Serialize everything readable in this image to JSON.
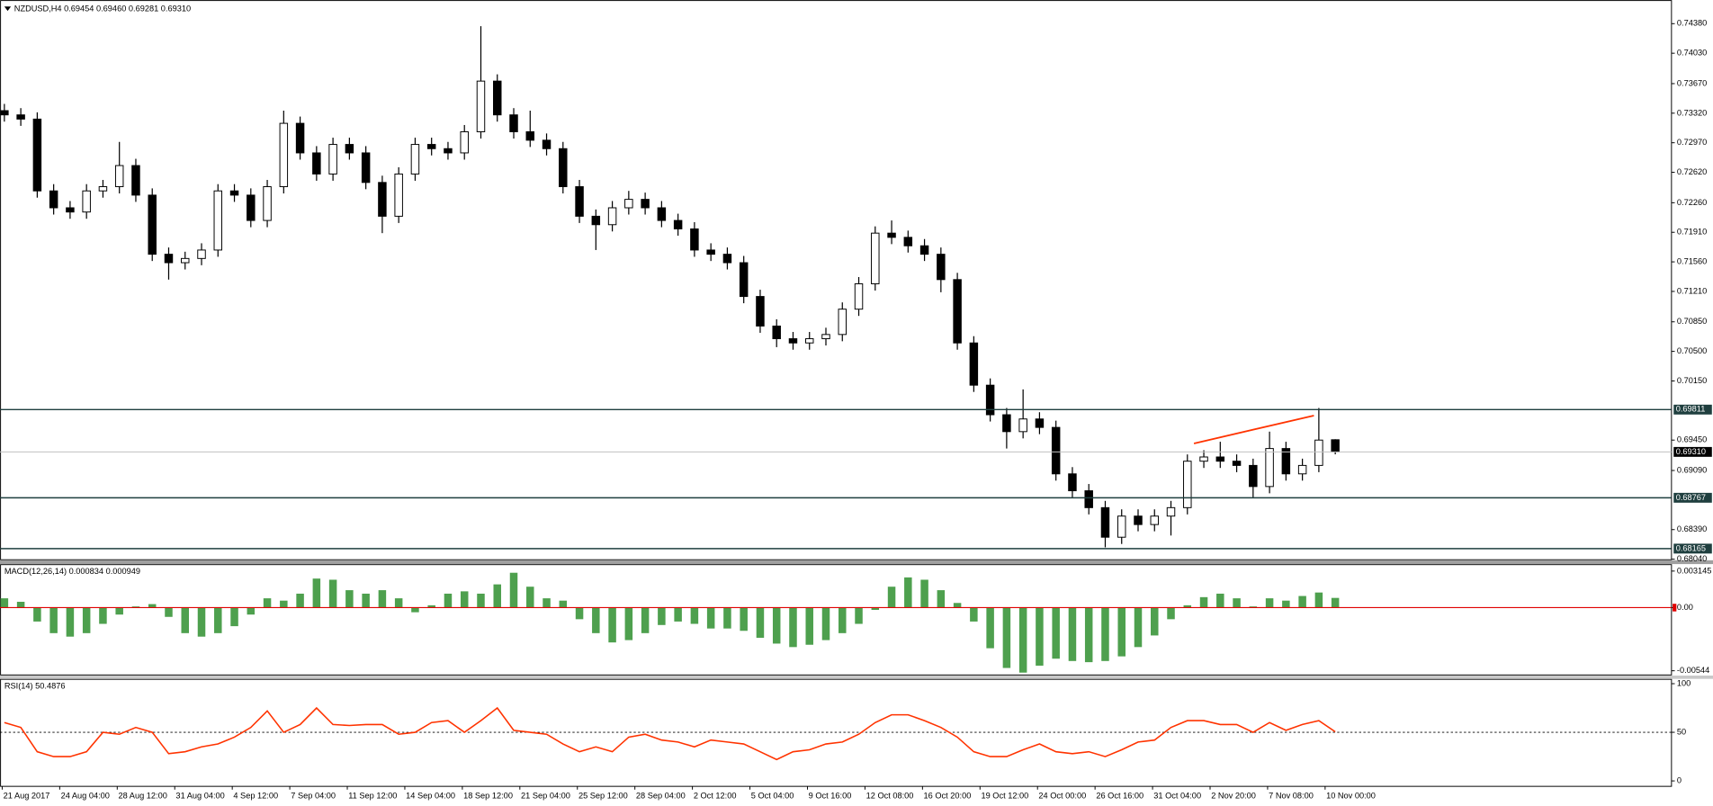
{
  "chart_data": [
    {
      "type": "candlestick",
      "title": "NZDUSD,H4  0.69454 0.69460 0.69281 0.69310",
      "ylim": [
        0.6804,
        0.7466
      ],
      "yticks": [
        {
          "value": 0.7438,
          "label": "0.74380"
        },
        {
          "value": 0.7403,
          "label": "0.74030"
        },
        {
          "value": 0.7367,
          "label": "0.73670"
        },
        {
          "value": 0.7332,
          "label": "0.73320"
        },
        {
          "value": 0.7297,
          "label": "0.72970"
        },
        {
          "value": 0.7262,
          "label": "0.72620"
        },
        {
          "value": 0.7226,
          "label": "0.72260"
        },
        {
          "value": 0.7191,
          "label": "0.71910"
        },
        {
          "value": 0.7156,
          "label": "0.71560"
        },
        {
          "value": 0.7121,
          "label": "0.71210"
        },
        {
          "value": 0.7085,
          "label": "0.70850"
        },
        {
          "value": 0.705,
          "label": "0.70500"
        },
        {
          "value": 0.7015,
          "label": "0.70150"
        },
        {
          "value": 0.6945,
          "label": "0.69450"
        },
        {
          "value": 0.6909,
          "label": "0.69090"
        },
        {
          "value": 0.6839,
          "label": "0.68390"
        },
        {
          "value": 0.6804,
          "label": "0.68040"
        }
      ],
      "levels": [
        0.69811,
        0.68767,
        0.68165
      ],
      "level_color": "#1f3f3f",
      "current_price": {
        "value": 0.6931,
        "label": "0.69310"
      },
      "trendline": {
        "x": [
          72.4,
          79.7
        ],
        "y": [
          0.6941,
          0.6974
        ],
        "color": "#ff3300"
      },
      "open": [
        0.7335,
        0.733,
        0.7325,
        0.724,
        0.722,
        0.7215,
        0.724,
        0.7245,
        0.727,
        0.7235,
        0.7165,
        0.7155,
        0.716,
        0.717,
        0.724,
        0.7235,
        0.7205,
        0.7245,
        0.732,
        0.7285,
        0.726,
        0.7295,
        0.7285,
        0.725,
        0.721,
        0.726,
        0.7295,
        0.729,
        0.7285,
        0.731,
        0.737,
        0.733,
        0.731,
        0.73,
        0.729,
        0.7245,
        0.721,
        0.72,
        0.722,
        0.723,
        0.722,
        0.7205,
        0.7195,
        0.717,
        0.7165,
        0.7155,
        0.7115,
        0.708,
        0.7065,
        0.706,
        0.7065,
        0.707,
        0.71,
        0.713,
        0.719,
        0.7185,
        0.7175,
        0.7165,
        0.7135,
        0.706,
        0.701,
        0.6975,
        0.6955,
        0.697,
        0.696,
        0.6905,
        0.6885,
        0.6865,
        0.683,
        0.6855,
        0.6845,
        0.6855,
        0.6865,
        0.692,
        0.6925,
        0.692,
        0.6915,
        0.689,
        0.6935,
        0.6905,
        0.6915,
        0.69454
      ],
      "high": [
        0.7343,
        0.7338,
        0.7333,
        0.7248,
        0.7228,
        0.7248,
        0.7253,
        0.7298,
        0.7278,
        0.7243,
        0.7173,
        0.7168,
        0.7178,
        0.7248,
        0.7248,
        0.7243,
        0.7253,
        0.7335,
        0.7328,
        0.7293,
        0.7303,
        0.7303,
        0.7293,
        0.7258,
        0.7268,
        0.7303,
        0.7303,
        0.7298,
        0.7318,
        0.7435,
        0.7378,
        0.7338,
        0.7335,
        0.7308,
        0.7298,
        0.7253,
        0.7218,
        0.7228,
        0.724,
        0.7238,
        0.7228,
        0.7213,
        0.7203,
        0.7178,
        0.7173,
        0.7163,
        0.7123,
        0.7088,
        0.7073,
        0.7073,
        0.7078,
        0.7108,
        0.7138,
        0.7198,
        0.7205,
        0.7193,
        0.7183,
        0.7173,
        0.7143,
        0.7068,
        0.7018,
        0.6983,
        0.7005,
        0.6978,
        0.6968,
        0.6913,
        0.6893,
        0.6873,
        0.6863,
        0.6863,
        0.6863,
        0.6873,
        0.6928,
        0.6933,
        0.6943,
        0.6928,
        0.6923,
        0.6955,
        0.6943,
        0.6923,
        0.6983,
        0.6946
      ],
      "low": [
        0.7322,
        0.7317,
        0.7232,
        0.7212,
        0.7207,
        0.7207,
        0.7232,
        0.7237,
        0.7227,
        0.7157,
        0.7135,
        0.7147,
        0.7152,
        0.7162,
        0.7227,
        0.7197,
        0.7197,
        0.7237,
        0.7277,
        0.7252,
        0.7252,
        0.7277,
        0.7242,
        0.719,
        0.7202,
        0.7252,
        0.7282,
        0.7277,
        0.7277,
        0.7302,
        0.7322,
        0.7302,
        0.7292,
        0.7282,
        0.7237,
        0.7202,
        0.717,
        0.7192,
        0.7212,
        0.7212,
        0.7197,
        0.7187,
        0.7162,
        0.7157,
        0.7147,
        0.7107,
        0.7072,
        0.7055,
        0.7052,
        0.7052,
        0.7057,
        0.7062,
        0.7092,
        0.7122,
        0.7177,
        0.7167,
        0.7157,
        0.712,
        0.7052,
        0.7002,
        0.6967,
        0.6935,
        0.6947,
        0.6952,
        0.6897,
        0.6877,
        0.6857,
        0.6818,
        0.6822,
        0.6837,
        0.6837,
        0.6832,
        0.6857,
        0.6912,
        0.6912,
        0.6907,
        0.6877,
        0.6882,
        0.6897,
        0.6897,
        0.6907,
        0.69281
      ],
      "close": [
        0.733,
        0.7325,
        0.724,
        0.722,
        0.7215,
        0.724,
        0.7245,
        0.727,
        0.7235,
        0.7165,
        0.7155,
        0.716,
        0.717,
        0.724,
        0.7235,
        0.7205,
        0.7245,
        0.732,
        0.7285,
        0.726,
        0.7295,
        0.7285,
        0.725,
        0.721,
        0.726,
        0.7295,
        0.729,
        0.7285,
        0.731,
        0.737,
        0.733,
        0.731,
        0.73,
        0.729,
        0.7245,
        0.721,
        0.72,
        0.722,
        0.723,
        0.722,
        0.7205,
        0.7195,
        0.717,
        0.7165,
        0.7155,
        0.7115,
        0.708,
        0.7065,
        0.706,
        0.7065,
        0.707,
        0.71,
        0.713,
        0.719,
        0.7185,
        0.7175,
        0.7165,
        0.7135,
        0.706,
        0.701,
        0.6975,
        0.6955,
        0.697,
        0.696,
        0.6905,
        0.6885,
        0.6865,
        0.683,
        0.6855,
        0.6845,
        0.6855,
        0.6865,
        0.692,
        0.6925,
        0.692,
        0.6915,
        0.689,
        0.6935,
        0.6905,
        0.6915,
        0.6945,
        0.6931
      ]
    },
    {
      "type": "bar",
      "title": "MACD(12,26,14) 0.000834 0.000949",
      "color": "#2f8f2f",
      "zero_color": "#e00000",
      "ylim": [
        -0.0058,
        0.0037
      ],
      "yticks": [
        0.003145,
        {
          "value": 0,
          "label": "0.00"
        },
        -0.00544
      ],
      "values": [
        0.0008,
        0.0005,
        -0.0012,
        -0.0022,
        -0.0025,
        -0.0022,
        -0.0014,
        -0.0006,
        0.0001,
        0.0003,
        -0.0008,
        -0.0022,
        -0.0025,
        -0.0022,
        -0.0016,
        -0.0006,
        0.0008,
        0.0006,
        0.0012,
        0.0025,
        0.0024,
        0.0015,
        0.0012,
        0.0015,
        0.0008,
        -0.0004,
        0.0002,
        0.0012,
        0.0014,
        0.0012,
        0.002,
        0.003,
        0.0018,
        0.0008,
        0.0006,
        -0.001,
        -0.0022,
        -0.003,
        -0.0028,
        -0.0022,
        -0.0015,
        -0.0012,
        -0.0014,
        -0.0018,
        -0.0018,
        -0.002,
        -0.0026,
        -0.0031,
        -0.0034,
        -0.0032,
        -0.0028,
        -0.0022,
        -0.0014,
        -0.0002,
        0.0018,
        0.0026,
        0.0024,
        0.0015,
        0.0004,
        -0.0012,
        -0.0035,
        -0.0052,
        -0.0056,
        -0.005,
        -0.0044,
        -0.0046,
        -0.0047,
        -0.0046,
        -0.0042,
        -0.0034,
        -0.0024,
        -0.001,
        0.0002,
        0.0009,
        0.0012,
        0.0008,
        0.0001,
        0.0008,
        0.0006,
        0.001,
        0.0013,
        0.000834
      ]
    },
    {
      "type": "line",
      "title": "RSI(14) 50.4876",
      "color": "#ff3300",
      "level": 50,
      "ylim": [
        -5.6,
        104.5
      ],
      "yticks": [
        100,
        50,
        0
      ],
      "values": [
        60,
        55,
        30,
        25,
        25,
        30,
        50,
        48,
        55,
        50,
        28,
        30,
        35,
        38,
        45,
        55,
        72,
        50,
        58,
        75,
        58,
        57,
        58,
        58,
        48,
        50,
        60,
        62,
        50,
        62,
        75,
        52,
        50,
        48,
        38,
        30,
        35,
        30,
        45,
        48,
        42,
        40,
        35,
        42,
        40,
        38,
        30,
        22,
        30,
        32,
        38,
        40,
        48,
        60,
        68,
        68,
        62,
        55,
        45,
        30,
        25,
        25,
        32,
        38,
        30,
        28,
        30,
        25,
        32,
        40,
        42,
        55,
        62,
        62,
        58,
        58,
        50,
        60,
        52,
        58,
        62,
        50.4876
      ],
      "x_labels": [
        "21 Aug 2017",
        "24 Aug 04:00",
        "28 Aug 12:00",
        "31 Aug 04:00",
        "4 Sep 12:00",
        "7 Sep 04:00",
        "11 Sep 12:00",
        "14 Sep 04:00",
        "18 Sep 12:00",
        "21 Sep 04:00",
        "25 Sep 12:00",
        "28 Sep 04:00",
        "2 Oct 12:00",
        "5 Oct 04:00",
        "9 Oct 16:00",
        "12 Oct 08:00",
        "16 Oct 20:00",
        "19 Oct 12:00",
        "24 Oct 00:00",
        "26 Oct 16:00",
        "31 Oct 04:00",
        "2 Nov 20:00",
        "7 Nov 08:00",
        "10 Nov 00:00"
      ]
    }
  ]
}
